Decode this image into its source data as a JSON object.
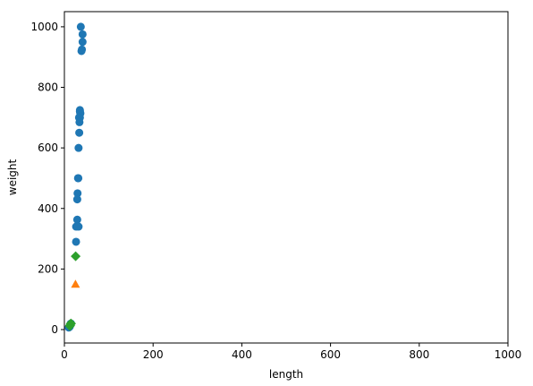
{
  "chart_data": {
    "type": "scatter",
    "x_label": "length",
    "y_label": "weight",
    "xlim": [
      0,
      1000
    ],
    "ylim": [
      -44.4,
      1050
    ],
    "xticks": [
      0,
      200,
      400,
      600,
      800,
      1000
    ],
    "yticks": [
      0,
      200,
      400,
      600,
      800,
      1000
    ],
    "grid": false,
    "series": [
      {
        "color": "#1f77b4",
        "marker": "circle",
        "x": [
          37,
          41,
          41,
          38.5,
          39.5,
          35,
          35,
          36,
          35,
          33,
          34,
          33.5,
          32,
          30.7,
          31.5,
          29.7,
          29,
          29,
          26.5,
          32,
          26.3,
          9.8,
          10.5,
          11.3,
          11.8,
          12,
          12.2,
          13,
          14.3,
          15
        ],
        "values": [
          1000,
          975,
          950,
          920,
          925,
          725,
          720,
          714,
          700,
          700,
          685,
          650,
          600,
          500,
          500,
          450,
          430,
          363,
          340,
          340,
          290,
          6.7,
          7.5,
          9.7,
          9.9,
          9.8,
          12.2,
          13.4,
          19.7,
          19.9
        ]
      },
      {
        "color": "#ff7f0e",
        "marker": "triangle",
        "x": [
          25
        ],
        "values": [
          150
        ]
      },
      {
        "color": "#2ca02c",
        "marker": "diamond",
        "x": [
          25.4,
          15,
          14.3,
          13,
          12.2
        ],
        "values": [
          242,
          19.9,
          19.7,
          13.4,
          12.2
        ]
      }
    ]
  }
}
